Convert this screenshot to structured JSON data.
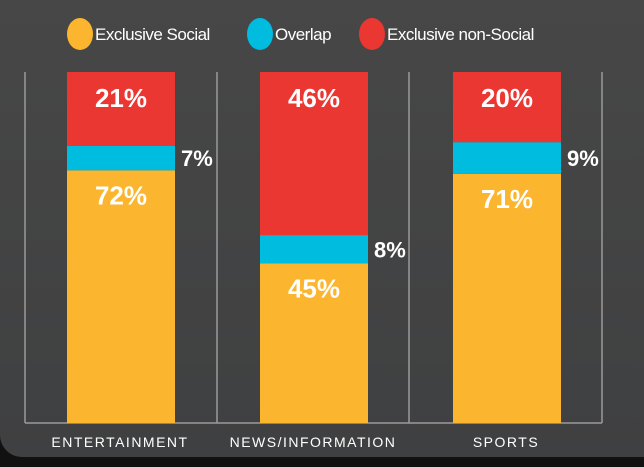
{
  "chart_data": {
    "type": "bar",
    "stacked": true,
    "categories": [
      "ENTERTAINMENT",
      "NEWS/INFORMATION",
      "SPORTS"
    ],
    "series": [
      {
        "name": "Exclusive Social",
        "color": "#fbb52e",
        "values": [
          72,
          45,
          71
        ],
        "labels": [
          "72%",
          "45%",
          "71%"
        ]
      },
      {
        "name": "Overlap",
        "color": "#00bde0",
        "values": [
          7,
          8,
          9
        ],
        "labels": [
          "7%",
          "8%",
          "9%"
        ]
      },
      {
        "name": "Exclusive non-Social",
        "color": "#ea3732",
        "values": [
          21,
          46,
          20
        ],
        "labels": [
          "21%",
          "46%",
          "20%"
        ]
      }
    ],
    "ylim": [
      0,
      100
    ],
    "unit": "%",
    "grid": false,
    "legend": "top",
    "background": "#444546"
  }
}
